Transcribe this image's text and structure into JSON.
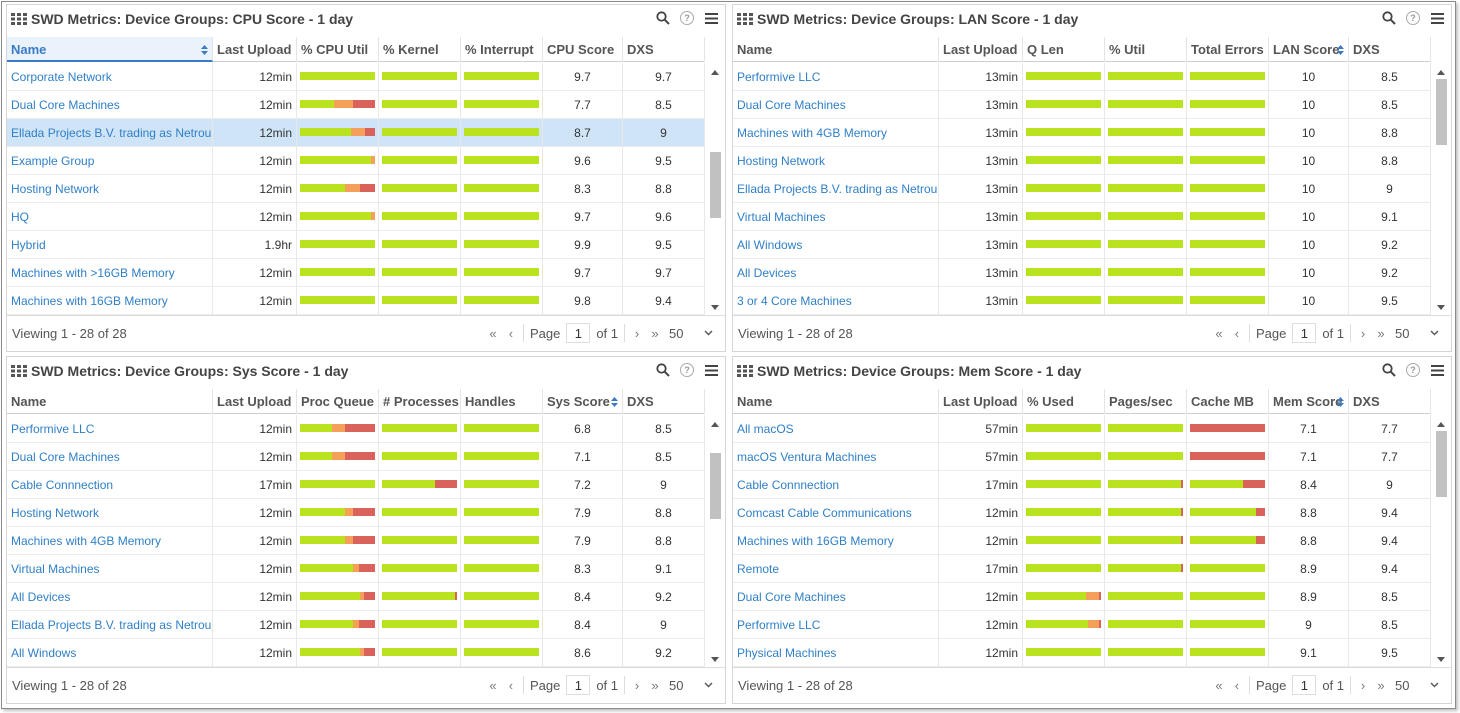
{
  "colors": {
    "green": "#b9e21f",
    "orange": "#f5a05a",
    "red": "#d9625a",
    "link": "#2f7fc7"
  },
  "panels": [
    {
      "title": "SWD Metrics: Device Groups: CPU Score - 1 day",
      "columns": [
        "Name",
        "Last Upload",
        "% CPU Util",
        "% Kernel",
        "% Interrupt",
        "CPU Score",
        "DXS"
      ],
      "sorted_column": 0,
      "sort_icon_column": 0,
      "rows": [
        {
          "name": "Corporate Network",
          "upload": "12min",
          "bars": [
            [
              1,
              0,
              0
            ],
            [
              1,
              0,
              0
            ],
            [
              1,
              0,
              0
            ]
          ],
          "score": "9.7",
          "dxs": "9.7"
        },
        {
          "name": "Dual Core Machines",
          "upload": "12min",
          "bars": [
            [
              0.45,
              0.26,
              0.29
            ],
            [
              1,
              0,
              0
            ],
            [
              1,
              0,
              0
            ]
          ],
          "score": "7.7",
          "dxs": "8.5"
        },
        {
          "name": "Ellada Projects B.V. trading as Netrou",
          "upload": "12min",
          "bars": [
            [
              0.68,
              0.18,
              0.14
            ],
            [
              1,
              0,
              0
            ],
            [
              1,
              0,
              0
            ]
          ],
          "score": "8.7",
          "dxs": "9",
          "selected": true
        },
        {
          "name": "Example Group",
          "upload": "12min",
          "bars": [
            [
              0.95,
              0.05,
              0
            ],
            [
              1,
              0,
              0
            ],
            [
              1,
              0,
              0
            ]
          ],
          "score": "9.6",
          "dxs": "9.5"
        },
        {
          "name": "Hosting Network",
          "upload": "12min",
          "bars": [
            [
              0.6,
              0.2,
              0.2
            ],
            [
              1,
              0,
              0
            ],
            [
              1,
              0,
              0
            ]
          ],
          "score": "8.3",
          "dxs": "8.8"
        },
        {
          "name": "HQ",
          "upload": "12min",
          "bars": [
            [
              0.95,
              0.05,
              0
            ],
            [
              1,
              0,
              0
            ],
            [
              1,
              0,
              0
            ]
          ],
          "score": "9.7",
          "dxs": "9.6"
        },
        {
          "name": "Hybrid",
          "upload": "1.9hr",
          "bars": [
            [
              1,
              0,
              0
            ],
            [
              1,
              0,
              0
            ],
            [
              1,
              0,
              0
            ]
          ],
          "score": "9.9",
          "dxs": "9.5"
        },
        {
          "name": "Machines with >16GB Memory",
          "upload": "12min",
          "bars": [
            [
              1,
              0,
              0
            ],
            [
              1,
              0,
              0
            ],
            [
              1,
              0,
              0
            ]
          ],
          "score": "9.7",
          "dxs": "9.7"
        },
        {
          "name": "Machines with 16GB Memory",
          "upload": "12min",
          "bars": [
            [
              1,
              0,
              0
            ],
            [
              1,
              0,
              0
            ],
            [
              1,
              0,
              0
            ]
          ],
          "score": "9.8",
          "dxs": "9.4"
        }
      ],
      "scroll": {
        "thumb_start": 0.33,
        "thumb_size": 0.3
      },
      "footer": {
        "viewing": "Viewing 1 - 28 of 28",
        "page_label": "Page",
        "page": "1",
        "of": "of 1",
        "page_size": "50"
      }
    },
    {
      "title": "SWD Metrics: Device Groups: LAN Score - 1 day",
      "columns": [
        "Name",
        "Last Upload",
        "Q Len",
        "% Util",
        "Total Errors",
        "LAN Score",
        "DXS"
      ],
      "sorted_column": -1,
      "sort_icon_column": 5,
      "rows": [
        {
          "name": "Performive LLC",
          "upload": "13min",
          "bars": [
            [
              1,
              0,
              0
            ],
            [
              1,
              0,
              0
            ],
            [
              1,
              0,
              0
            ]
          ],
          "score": "10",
          "dxs": "8.5"
        },
        {
          "name": "Dual Core Machines",
          "upload": "13min",
          "bars": [
            [
              1,
              0,
              0
            ],
            [
              1,
              0,
              0
            ],
            [
              1,
              0,
              0
            ]
          ],
          "score": "10",
          "dxs": "8.5"
        },
        {
          "name": "Machines with 4GB Memory",
          "upload": "13min",
          "bars": [
            [
              1,
              0,
              0
            ],
            [
              1,
              0,
              0
            ],
            [
              1,
              0,
              0
            ]
          ],
          "score": "10",
          "dxs": "8.8"
        },
        {
          "name": "Hosting Network",
          "upload": "13min",
          "bars": [
            [
              1,
              0,
              0
            ],
            [
              1,
              0,
              0
            ],
            [
              1,
              0,
              0
            ]
          ],
          "score": "10",
          "dxs": "8.8"
        },
        {
          "name": "Ellada Projects B.V. trading as Netrou",
          "upload": "13min",
          "bars": [
            [
              1,
              0,
              0
            ],
            [
              1,
              0,
              0
            ],
            [
              1,
              0,
              0
            ]
          ],
          "score": "10",
          "dxs": "9"
        },
        {
          "name": "Virtual Machines",
          "upload": "13min",
          "bars": [
            [
              1,
              0,
              0
            ],
            [
              1,
              0,
              0
            ],
            [
              1,
              0,
              0
            ]
          ],
          "score": "10",
          "dxs": "9.1"
        },
        {
          "name": "All Windows",
          "upload": "13min",
          "bars": [
            [
              1,
              0,
              0
            ],
            [
              1,
              0,
              0
            ],
            [
              1,
              0,
              0
            ]
          ],
          "score": "10",
          "dxs": "9.2"
        },
        {
          "name": "All Devices",
          "upload": "13min",
          "bars": [
            [
              1,
              0,
              0
            ],
            [
              1,
              0,
              0
            ],
            [
              1,
              0,
              0
            ]
          ],
          "score": "10",
          "dxs": "9.2"
        },
        {
          "name": "3 or 4 Core Machines",
          "upload": "13min",
          "bars": [
            [
              1,
              0,
              0
            ],
            [
              1,
              0,
              0
            ],
            [
              1,
              0,
              0
            ]
          ],
          "score": "10",
          "dxs": "9.5"
        }
      ],
      "scroll": {
        "thumb_start": 0.0,
        "thumb_size": 0.3
      },
      "footer": {
        "viewing": "Viewing 1 - 28 of 28",
        "page_label": "Page",
        "page": "1",
        "of": "of 1",
        "page_size": "50"
      }
    },
    {
      "title": "SWD Metrics: Device Groups: Sys Score - 1 day",
      "columns": [
        "Name",
        "Last Upload",
        "Proc Queue",
        "# Processes",
        "Handles",
        "Sys Score",
        "DXS"
      ],
      "sorted_column": -1,
      "sort_icon_column": 5,
      "rows": [
        {
          "name": "Performive LLC",
          "upload": "12min",
          "bars": [
            [
              0.43,
              0.17,
              0.4
            ],
            [
              1,
              0,
              0
            ],
            [
              1,
              0,
              0
            ]
          ],
          "score": "6.8",
          "dxs": "8.5"
        },
        {
          "name": "Dual Core Machines",
          "upload": "12min",
          "bars": [
            [
              0.43,
              0.17,
              0.4
            ],
            [
              1,
              0,
              0
            ],
            [
              1,
              0,
              0
            ]
          ],
          "score": "7.1",
          "dxs": "8.5"
        },
        {
          "name": "Cable Connnection",
          "upload": "17min",
          "bars": [
            [
              1,
              0,
              0
            ],
            [
              0.7,
              0,
              0.3
            ],
            [
              1,
              0,
              0
            ]
          ],
          "score": "7.2",
          "dxs": "9"
        },
        {
          "name": "Hosting Network",
          "upload": "12min",
          "bars": [
            [
              0.6,
              0.1,
              0.3
            ],
            [
              1,
              0,
              0
            ],
            [
              1,
              0,
              0
            ]
          ],
          "score": "7.9",
          "dxs": "8.8"
        },
        {
          "name": "Machines with 4GB Memory",
          "upload": "12min",
          "bars": [
            [
              0.6,
              0.1,
              0.3
            ],
            [
              1,
              0,
              0
            ],
            [
              1,
              0,
              0
            ]
          ],
          "score": "7.9",
          "dxs": "8.8"
        },
        {
          "name": "Virtual Machines",
          "upload": "12min",
          "bars": [
            [
              0.7,
              0.08,
              0.22
            ],
            [
              1,
              0,
              0
            ],
            [
              1,
              0,
              0
            ]
          ],
          "score": "8.3",
          "dxs": "9.1"
        },
        {
          "name": "All Devices",
          "upload": "12min",
          "bars": [
            [
              0.8,
              0.05,
              0.15
            ],
            [
              0.97,
              0,
              0.03
            ],
            [
              1,
              0,
              0
            ]
          ],
          "score": "8.4",
          "dxs": "9.2"
        },
        {
          "name": "Ellada Projects B.V. trading as Netrou",
          "upload": "12min",
          "bars": [
            [
              0.7,
              0.08,
              0.22
            ],
            [
              1,
              0,
              0
            ],
            [
              1,
              0,
              0
            ]
          ],
          "score": "8.4",
          "dxs": "9"
        },
        {
          "name": "All Windows",
          "upload": "12min",
          "bars": [
            [
              0.8,
              0.05,
              0.15
            ],
            [
              1,
              0,
              0
            ],
            [
              1,
              0,
              0
            ]
          ],
          "score": "8.6",
          "dxs": "9.2"
        }
      ],
      "scroll": {
        "thumb_start": 0.1,
        "thumb_size": 0.3
      },
      "footer": {
        "viewing": "Viewing 1 - 28 of 28",
        "page_label": "Page",
        "page": "1",
        "of": "of 1",
        "page_size": "50"
      }
    },
    {
      "title": "SWD Metrics: Device Groups: Mem Score - 1 day",
      "columns": [
        "Name",
        "Last Upload",
        "% Used",
        "Pages/sec",
        "Cache MB",
        "Mem Score",
        "DXS"
      ],
      "sorted_column": -1,
      "sort_icon_column": 5,
      "rows": [
        {
          "name": "All macOS",
          "upload": "57min",
          "bars": [
            [
              1,
              0,
              0
            ],
            [
              1,
              0,
              0
            ],
            [
              0,
              0,
              1
            ]
          ],
          "score": "7.1",
          "dxs": "7.7"
        },
        {
          "name": "macOS Ventura Machines",
          "upload": "57min",
          "bars": [
            [
              1,
              0,
              0
            ],
            [
              1,
              0,
              0
            ],
            [
              0,
              0,
              1
            ]
          ],
          "score": "7.1",
          "dxs": "7.7"
        },
        {
          "name": "Cable Connnection",
          "upload": "17min",
          "bars": [
            [
              1,
              0,
              0
            ],
            [
              0.97,
              0,
              0.03
            ],
            [
              0.7,
              0,
              0.3
            ]
          ],
          "score": "8.4",
          "dxs": "9"
        },
        {
          "name": "Comcast Cable Communications",
          "upload": "12min",
          "bars": [
            [
              1,
              0,
              0
            ],
            [
              0.97,
              0,
              0.03
            ],
            [
              0.88,
              0,
              0.12
            ]
          ],
          "score": "8.8",
          "dxs": "9.4"
        },
        {
          "name": "Machines with 16GB Memory",
          "upload": "12min",
          "bars": [
            [
              1,
              0,
              0
            ],
            [
              0.97,
              0,
              0.03
            ],
            [
              0.88,
              0,
              0.12
            ]
          ],
          "score": "8.8",
          "dxs": "9.4"
        },
        {
          "name": "Remote",
          "upload": "17min",
          "bars": [
            [
              1,
              0,
              0
            ],
            [
              0.97,
              0,
              0.03
            ],
            [
              1,
              0,
              0
            ]
          ],
          "score": "8.9",
          "dxs": "9.4"
        },
        {
          "name": "Dual Core Machines",
          "upload": "12min",
          "bars": [
            [
              0.8,
              0.17,
              0.03
            ],
            [
              1,
              0,
              0
            ],
            [
              1,
              0,
              0
            ]
          ],
          "score": "8.9",
          "dxs": "8.5"
        },
        {
          "name": "Performive LLC",
          "upload": "12min",
          "bars": [
            [
              0.83,
              0.14,
              0.03
            ],
            [
              1,
              0,
              0
            ],
            [
              1,
              0,
              0
            ]
          ],
          "score": "9",
          "dxs": "8.5"
        },
        {
          "name": "Physical Machines",
          "upload": "12min",
          "bars": [
            [
              1,
              0,
              0
            ],
            [
              1,
              0,
              0
            ],
            [
              1,
              0,
              0
            ]
          ],
          "score": "9.1",
          "dxs": "9.5"
        }
      ],
      "scroll": {
        "thumb_start": 0.0,
        "thumb_size": 0.3
      },
      "footer": {
        "viewing": "Viewing 1 - 28 of 28",
        "page_label": "Page",
        "page": "1",
        "of": "of 1",
        "page_size": "50"
      }
    }
  ]
}
